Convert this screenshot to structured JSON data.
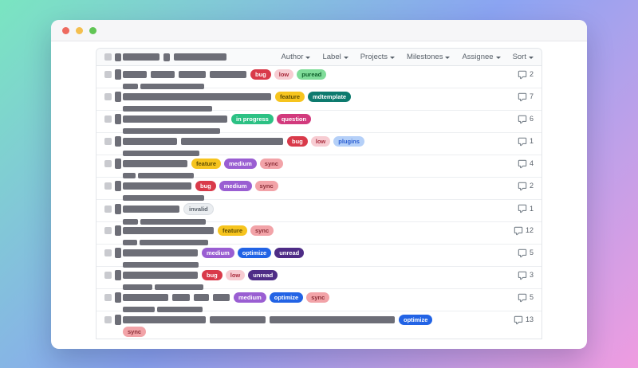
{
  "window": {
    "traffic_lights": [
      {
        "name": "close",
        "color": "#ee6a5f"
      },
      {
        "name": "minimize",
        "color": "#f4bf4f"
      },
      {
        "name": "zoom",
        "color": "#61c555"
      }
    ]
  },
  "list_header": {
    "filters": [
      "Author",
      "Label",
      "Projects",
      "Milestones",
      "Assignee",
      "Sort"
    ],
    "redaction_bars": [
      46,
      66
    ]
  },
  "label_palette": {
    "bug": {
      "bg": "#d93a4a",
      "fg": "#ffffff"
    },
    "low": {
      "bg": "#f7ccd2",
      "fg": "#aa2c3d"
    },
    "puread": {
      "bg": "#7fdc99",
      "fg": "#0f5f2c"
    },
    "feature": {
      "bg": "#f6c41e",
      "fg": "#5f4c00"
    },
    "mdtemplate": {
      "bg": "#0d7a6e",
      "fg": "#ffffff"
    },
    "in progress": {
      "bg": "#2cc184",
      "fg": "#ffffff"
    },
    "question": {
      "bg": "#d23a7d",
      "fg": "#ffffff"
    },
    "plugins": {
      "bg": "#b5d0f8",
      "fg": "#2b5ed2"
    },
    "medium": {
      "bg": "#9a5ed2",
      "fg": "#ffffff"
    },
    "sync": {
      "bg": "#f2a3a8",
      "fg": "#8c2f38"
    },
    "invalid": {
      "bg": "#eaedf0",
      "fg": "#59616a",
      "border": "#d9dde2"
    },
    "optimize": {
      "bg": "#2263e5",
      "fg": "#ffffff"
    },
    "unread": {
      "bg": "#4e2c86",
      "fg": "#ffffff"
    }
  },
  "rows": [
    {
      "bars": [
        30,
        30,
        34,
        46
      ],
      "labels": [
        "bug",
        "low",
        "puread"
      ],
      "meta": [
        19,
        80
      ],
      "comments": "2"
    },
    {
      "bars": [
        186
      ],
      "labels": [
        "feature",
        "mdtemplate"
      ],
      "meta": [
        112
      ],
      "comments": "7"
    },
    {
      "bars": [
        131
      ],
      "labels": [
        "in progress",
        "question"
      ],
      "meta": [
        122
      ],
      "comments": "6"
    },
    {
      "bars": [
        68,
        128
      ],
      "labels": [
        "bug",
        "low",
        "plugins"
      ],
      "meta": [
        96
      ],
      "comments": "1"
    },
    {
      "bars": [
        81
      ],
      "labels": [
        "feature",
        "medium",
        "sync"
      ],
      "meta": [
        16,
        70
      ],
      "comments": "4"
    },
    {
      "bars": [
        86
      ],
      "labels": [
        "bug",
        "medium",
        "sync"
      ],
      "meta": [
        102
      ],
      "comments": "2"
    },
    {
      "bars": [
        71
      ],
      "labels": [
        "invalid"
      ],
      "meta": [
        19,
        82
      ],
      "comments": "1"
    },
    {
      "bars": [
        114
      ],
      "labels": [
        "feature",
        "sync"
      ],
      "meta": [
        18,
        86
      ],
      "comments": "12"
    },
    {
      "bars": [
        94
      ],
      "labels": [
        "medium",
        "optimize",
        "unread"
      ],
      "meta": [
        95
      ],
      "comments": "5"
    },
    {
      "bars": [
        94
      ],
      "labels": [
        "bug",
        "low",
        "unread"
      ],
      "meta": [
        37,
        61
      ],
      "comments": "3"
    },
    {
      "bars": [
        57,
        22,
        19,
        21
      ],
      "labels": [
        "medium",
        "optimize",
        "sync"
      ],
      "meta": [
        40,
        57
      ],
      "comments": "5"
    },
    {
      "bars": [
        104,
        70,
        157
      ],
      "labels": [
        "optimize"
      ],
      "labels2": [
        "sync"
      ],
      "meta": [
        105
      ],
      "comments": "13"
    }
  ]
}
